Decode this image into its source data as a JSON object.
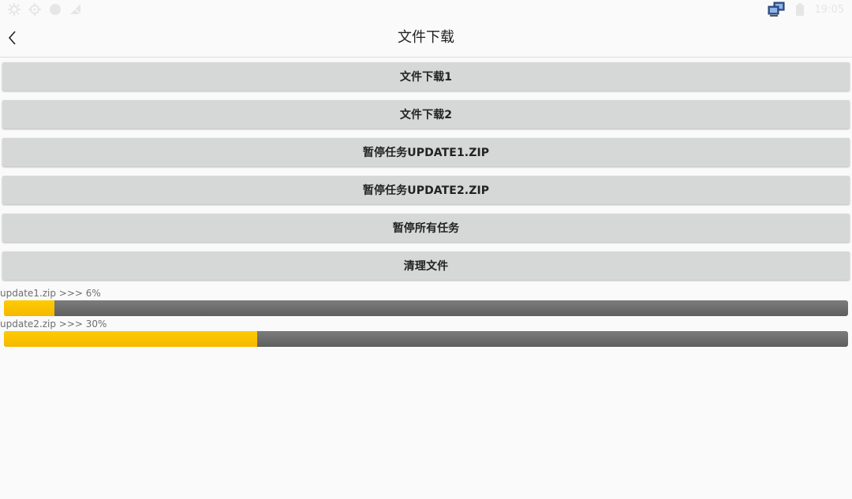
{
  "status_bar": {
    "left_icons": [
      "settings-gear-icon",
      "location-icon",
      "circle-icon",
      "signal-off-icon"
    ],
    "right_icons": [
      "network-icon",
      "battery-icon"
    ],
    "time": "19:05"
  },
  "toolbar": {
    "title": "文件下载",
    "back_icon": "chevron-left-icon"
  },
  "buttons": [
    {
      "label": "文件下载1"
    },
    {
      "label": "文件下载2"
    },
    {
      "label": "暂停任务UPDATE1.ZIP"
    },
    {
      "label": "暂停任务UPDATE2.ZIP"
    },
    {
      "label": "暂停所有任务"
    },
    {
      "label": "清理文件"
    }
  ],
  "downloads": [
    {
      "label": "update1.zip >>> 6%",
      "progress": 0.06
    },
    {
      "label": "update2.zip >>> 30%",
      "progress": 0.3
    }
  ],
  "colors": {
    "progress_fill": "#ffc400",
    "progress_track": "#6d6d6d",
    "button_bg": "#d6d7d7",
    "background": "#fafafa"
  }
}
